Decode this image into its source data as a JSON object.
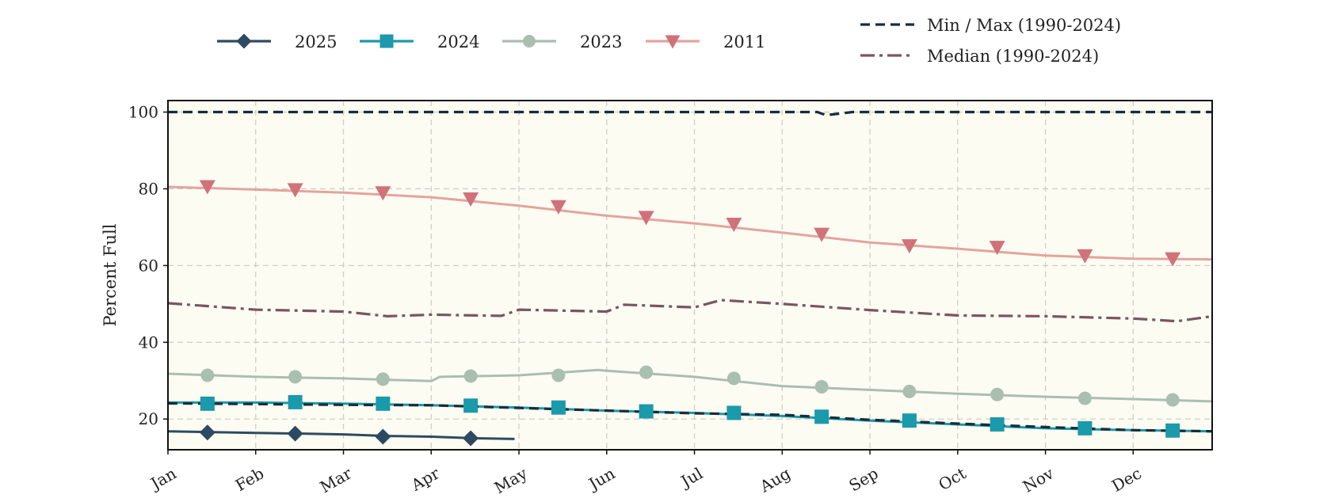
{
  "chart_data": {
    "type": "line",
    "title": "",
    "xlabel": "",
    "ylabel": "Percent Full",
    "ylim": [
      12,
      103
    ],
    "yticks": [
      20,
      40,
      60,
      80,
      100
    ],
    "x_ticks": [
      "Jan",
      "Feb",
      "Mar",
      "Apr",
      "May",
      "Jun",
      "Jul",
      "Aug",
      "Sep",
      "Oct",
      "Nov",
      "Dec"
    ],
    "grid": true,
    "plot_background": "#fdfcf2",
    "legend_placement": "top",
    "series": [
      {
        "name": "2025",
        "color": "#2e4a62",
        "marker": "diamond",
        "x": [
          0,
          0.5,
          1,
          1.5,
          2,
          2.5,
          3,
          3.5,
          3.95
        ],
        "values": [
          16.8,
          16.6,
          16.4,
          16.2,
          16.0,
          15.6,
          15.4,
          15.0,
          14.8
        ],
        "marker_x": [
          0.45,
          1.45,
          2.45,
          3.45
        ],
        "marker_values": [
          16.5,
          16.2,
          15.4,
          15.0
        ]
      },
      {
        "name": "2024",
        "color": "#1a9aaa",
        "marker": "square",
        "x": [
          0,
          1,
          2,
          3,
          4,
          5,
          6,
          7,
          8,
          9,
          10,
          11,
          11.9
        ],
        "values": [
          24.3,
          24.3,
          24.0,
          23.6,
          23.0,
          22.2,
          21.6,
          20.8,
          19.6,
          18.6,
          17.6,
          17.1,
          16.8
        ],
        "marker_x": [
          0.45,
          1.45,
          2.45,
          3.45,
          4.45,
          5.45,
          6.45,
          7.45,
          8.45,
          9.45,
          10.45,
          11.45
        ],
        "marker_values": [
          24.0,
          24.4,
          24.0,
          23.5,
          23.0,
          22.0,
          21.6,
          20.6,
          19.6,
          18.6,
          17.6,
          17.0
        ]
      },
      {
        "name": "2023",
        "color": "#a9bfb0",
        "marker": "circle",
        "x": [
          0,
          1,
          2,
          3,
          3.1,
          4,
          4.9,
          5,
          6,
          7,
          8,
          9,
          10,
          11,
          11.9
        ],
        "values": [
          31.8,
          31.0,
          30.6,
          29.9,
          31.0,
          31.4,
          32.8,
          32.6,
          31.0,
          28.6,
          27.6,
          26.6,
          25.8,
          25.2,
          24.6
        ],
        "marker_x": [
          0.45,
          1.45,
          2.45,
          3.45,
          4.45,
          5.45,
          6.45,
          7.45,
          8.45,
          9.45,
          10.45,
          11.45
        ],
        "marker_values": [
          31.4,
          31.0,
          30.4,
          31.2,
          31.4,
          32.2,
          30.6,
          28.4,
          27.2,
          26.4,
          25.4,
          25.0
        ]
      },
      {
        "name": "2011",
        "color": "#e3a49f",
        "marker_color": "#d0727a",
        "marker": "triangle-down",
        "x": [
          0,
          1,
          2,
          3,
          4,
          5,
          6,
          7,
          8,
          9,
          10,
          11,
          11.9
        ],
        "values": [
          80.5,
          79.8,
          79.0,
          77.8,
          75.6,
          73.0,
          71.0,
          68.6,
          66.0,
          64.4,
          62.6,
          61.8,
          61.6
        ],
        "marker_x": [
          0.45,
          1.45,
          2.45,
          3.45,
          4.45,
          5.45,
          6.45,
          7.45,
          8.45,
          9.45,
          10.45,
          11.45
        ],
        "marker_values": [
          80.6,
          79.8,
          79.0,
          77.4,
          75.4,
          72.6,
          70.8,
          68.2,
          65.2,
          64.8,
          62.6,
          61.8
        ]
      },
      {
        "name": "Min / Max (1990-2024)",
        "color": "#172d3b",
        "dash": "dashed",
        "x": [
          0,
          1,
          2,
          3,
          4,
          5,
          6,
          7,
          8,
          9,
          10,
          11,
          11.9
        ],
        "values": [
          24.1,
          23.9,
          23.7,
          23.6,
          22.9,
          22.2,
          21.5,
          21.1,
          19.8,
          18.8,
          17.9,
          17.1,
          16.8
        ],
        "x_upper": [
          0,
          7.4,
          7.5,
          7.65,
          7.8,
          11.9
        ],
        "values_upper": [
          100,
          100,
          99.2,
          99.6,
          100,
          100
        ]
      },
      {
        "name": "Median (1990-2024)",
        "color": "#7a5560",
        "dash": "dashdot",
        "x": [
          0,
          1,
          2,
          2.5,
          3,
          3.8,
          4,
          5,
          5.2,
          6,
          6.3,
          7,
          8,
          9,
          10,
          11,
          11.5,
          11.9
        ],
        "values": [
          50.2,
          48.5,
          48.0,
          46.8,
          47.2,
          46.9,
          48.5,
          48.0,
          49.8,
          49.1,
          51.0,
          50.0,
          48.4,
          47.0,
          46.8,
          46.2,
          45.5,
          46.8
        ]
      }
    ]
  }
}
